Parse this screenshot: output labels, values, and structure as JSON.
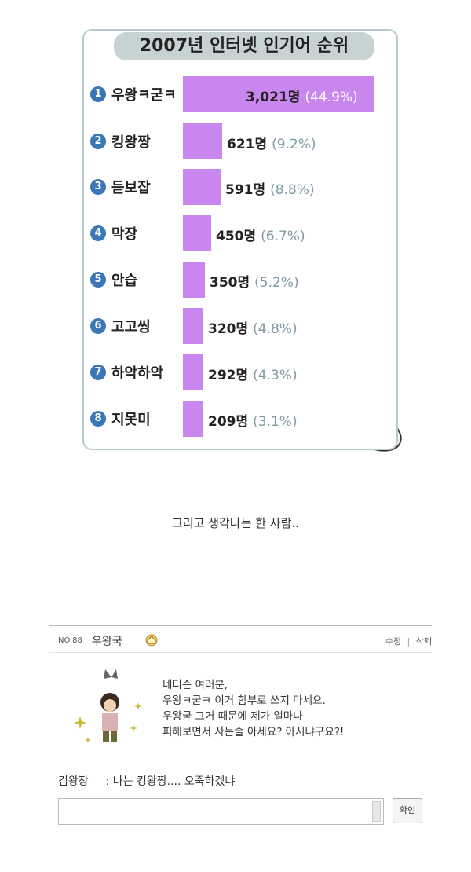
{
  "chart_data": {
    "type": "bar",
    "title": "2007년 인터넷 인기어 순위",
    "orientation": "horizontal",
    "categories": [
      "우왕ㅋ굳ㅋ",
      "킹왕짱",
      "듣보잡",
      "막장",
      "안습",
      "고고씽",
      "하악하악",
      "지못미"
    ],
    "ranks": [
      "1",
      "2",
      "3",
      "4",
      "5",
      "6",
      "7",
      "8"
    ],
    "values": [
      3021,
      621,
      591,
      450,
      350,
      320,
      292,
      209
    ],
    "count_labels": [
      "3,021명",
      "621명",
      "591명",
      "450명",
      "350명",
      "320명",
      "292명",
      "209명"
    ],
    "percent_labels": [
      "(44.9%)",
      "(9.2%)",
      "(8.8%)",
      "(6.7%)",
      "(5.2%)",
      "(4.8%)",
      "(4.3%)",
      "(3.1%)"
    ],
    "bar_color": "#c986ef",
    "rank_badge_color": "#3b77b7"
  },
  "caption": "그리고 생각나는 한 사람..",
  "guestbook": {
    "number": "NO.88",
    "author": "우왕국",
    "edit_label": "수정",
    "separator": "|",
    "delete_label": "삭제",
    "message_lines": [
      "네티즌 여러분,",
      "우왕ㅋ굳ㅋ 이거 함부로 쓰지 마세요.",
      "우왕굳 그거 때문에 제가 얼마나",
      "피해보면서 사는줄 아세요? 아시냐구요?!"
    ],
    "comment": {
      "author": "김왕장",
      "text": ": 나는 킹왕짱.... 오죽하겠냐"
    },
    "input_value": "",
    "confirm_label": "확인"
  }
}
